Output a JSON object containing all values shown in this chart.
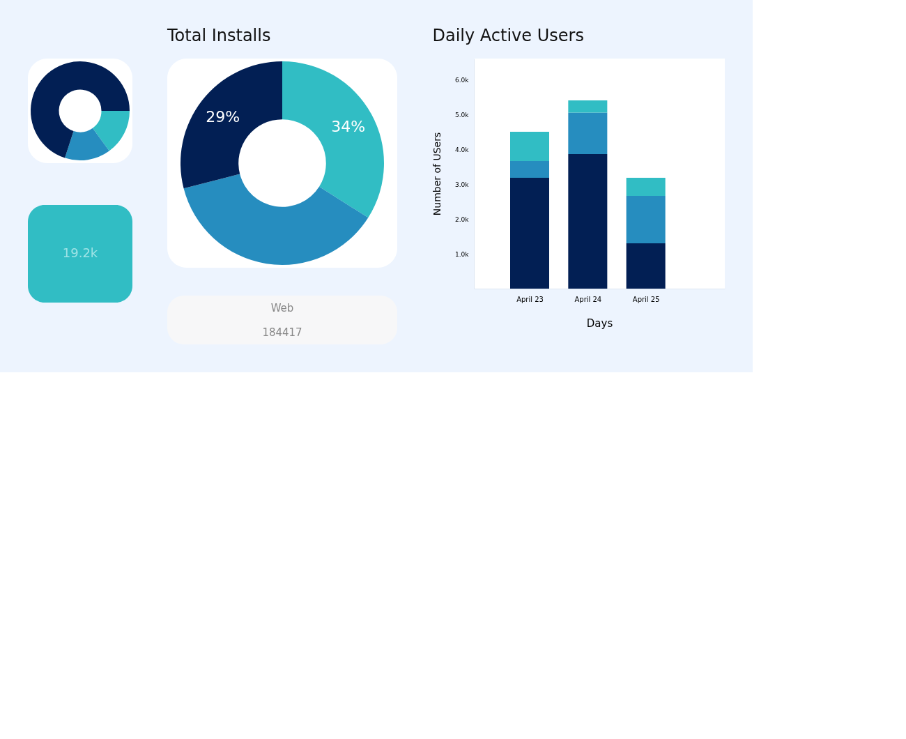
{
  "chart_data": [
    {
      "type": "donut",
      "title": "Total Installs",
      "categories": [
        null,
        null,
        null
      ],
      "values": [
        34,
        37,
        29
      ],
      "colors": [
        "#31bdc4",
        "#268dbf",
        "#021f54"
      ],
      "value_labels": [
        "34%",
        null,
        "29%"
      ]
    },
    {
      "type": "other",
      "annotations": [
        "Web",
        "184417"
      ]
    },
    {
      "type": "bar",
      "title": "Daily Active Users",
      "xlabel": "Days",
      "ylabel": "Number of USers",
      "categories": [
        "April 23",
        "April 24",
        "April 25"
      ],
      "stacked": true,
      "grid": false,
      "ylim": [
        0,
        6600
      ],
      "yticks": [
        {
          "value": 1000,
          "label": "1.0k"
        },
        {
          "value": 2000,
          "label": "2.0k"
        },
        {
          "value": 3000,
          "label": "3.0k"
        },
        {
          "value": 4000,
          "label": "4.0k"
        },
        {
          "value": 5000,
          "label": "5.0k"
        },
        {
          "value": 6000,
          "label": "6.0k"
        }
      ],
      "series": [
        {
          "color": "#021f54",
          "values": [
            3180,
            3860,
            1300
          ]
        },
        {
          "color": "#268dbf",
          "values": [
            480,
            1190,
            1360
          ]
        },
        {
          "color": "#31bdc4",
          "values": [
            840,
            350,
            520
          ]
        }
      ]
    },
    {
      "type": "donut",
      "categories": [
        null,
        null,
        null
      ],
      "values": [
        15,
        15,
        70
      ],
      "colors": [
        "#31bdc4",
        "#268dbf",
        "#021f54"
      ]
    },
    {
      "type": "other",
      "annotations": [
        "19.2k"
      ]
    }
  ]
}
